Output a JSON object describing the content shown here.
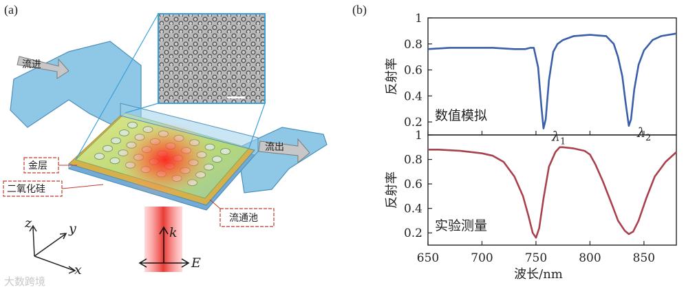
{
  "panel_a": {
    "label": "(a)",
    "callouts": {
      "inflow": "流进",
      "outflow": "流出",
      "gold": "金层",
      "silica": "二氧化硅",
      "cell": "流通池"
    },
    "axes": {
      "z": "z",
      "y": "y",
      "x": "x",
      "k": "k",
      "E": "E"
    }
  },
  "panel_b": {
    "label": "(b)"
  },
  "watermark": "大数跨境",
  "colors": {
    "sim": "#3a5ea8",
    "exp": "#a8404e",
    "device": "#6fb3d9",
    "laser": "#e8302a"
  },
  "chart_data": [
    {
      "type": "line",
      "title": "",
      "annotation": "数值模拟",
      "ylabel": "反射率",
      "xlim": [
        650,
        880
      ],
      "ylim": [
        0.1,
        1.0
      ],
      "yticks": [
        0.2,
        0.4,
        0.6,
        0.8,
        1
      ],
      "markers": [
        {
          "base": "λ",
          "sub": "1",
          "x": 757,
          "y": 0.14
        },
        {
          "base": "λ",
          "sub": "2",
          "x": 836,
          "y": 0.17
        }
      ],
      "series": [
        {
          "x": [
            650,
            670,
            690,
            710,
            730,
            740,
            745,
            748,
            752,
            755,
            757,
            759,
            762,
            766,
            770,
            775,
            785,
            800,
            815,
            822,
            826,
            830,
            833,
            836,
            838,
            841,
            845,
            850,
            858,
            866,
            880
          ],
          "y": [
            0.76,
            0.77,
            0.77,
            0.77,
            0.76,
            0.76,
            0.77,
            0.77,
            0.62,
            0.32,
            0.15,
            0.22,
            0.52,
            0.74,
            0.8,
            0.83,
            0.86,
            0.87,
            0.86,
            0.8,
            0.7,
            0.55,
            0.35,
            0.17,
            0.22,
            0.45,
            0.64,
            0.75,
            0.83,
            0.86,
            0.88
          ]
        }
      ]
    },
    {
      "type": "line",
      "title": "",
      "annotation": "实验测量",
      "ylabel": "反射率",
      "xlabel": "波长/nm",
      "xlim": [
        650,
        880
      ],
      "ylim": [
        0.1,
        1.0
      ],
      "xticks": [
        650,
        700,
        750,
        800,
        850
      ],
      "yticks": [
        0.2,
        0.4,
        0.6,
        0.8,
        1
      ],
      "series": [
        {
          "x": [
            650,
            660,
            680,
            700,
            710,
            720,
            730,
            738,
            743,
            747,
            750,
            753,
            757,
            762,
            768,
            772,
            775,
            785,
            795,
            800,
            805,
            812,
            820,
            826,
            832,
            836,
            840,
            845,
            852,
            860,
            870,
            880
          ],
          "y": [
            0.88,
            0.88,
            0.87,
            0.85,
            0.83,
            0.78,
            0.66,
            0.5,
            0.34,
            0.2,
            0.16,
            0.24,
            0.48,
            0.74,
            0.86,
            0.9,
            0.9,
            0.89,
            0.87,
            0.84,
            0.76,
            0.62,
            0.44,
            0.3,
            0.22,
            0.19,
            0.21,
            0.3,
            0.48,
            0.66,
            0.78,
            0.86
          ]
        }
      ]
    }
  ]
}
